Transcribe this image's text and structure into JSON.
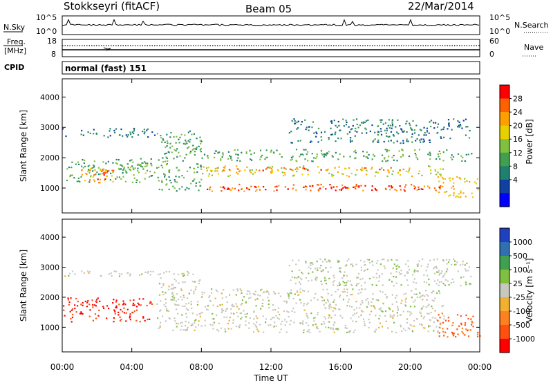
{
  "header": {
    "station": "Stokkseyri (fitACF)",
    "beam": "Beam 05",
    "date": "22/Mar/2014"
  },
  "nsky_panel": {
    "label": "N.Sky",
    "right_label": "N.Search",
    "left_ticks": [
      "10^5",
      "10^0"
    ],
    "right_ticks": [
      "10^5",
      "10^0"
    ]
  },
  "freq_panel": {
    "label_line1": "Freq.",
    "label_line2": "[MHz]",
    "right_label": "Nave",
    "left_ticks": [
      "18",
      "8"
    ],
    "right_ticks": [
      "60",
      "0"
    ]
  },
  "cpid_panel": {
    "label": "CPID",
    "text": "normal (fast) 151"
  },
  "power_panel": {
    "ylabel": "Slant Range [km]",
    "colorbar_label": "Power [dB]",
    "colorbar_ticks": [
      "28",
      "24",
      "20",
      "16",
      "12",
      "8",
      "4"
    ],
    "colorbar_colors": [
      "#ff0000",
      "#ff6000",
      "#ffa000",
      "#e6d000",
      "#80c040",
      "#40a050",
      "#208070",
      "#1040a0",
      "#0000ff"
    ]
  },
  "velocity_panel": {
    "ylabel": "Slant Range [km]",
    "colorbar_label": "Velocity [m s⁻¹]",
    "colorbar_ticks": [
      "1000",
      "500",
      "100",
      "25",
      "-25",
      "-100",
      "-500",
      "-1000"
    ],
    "colorbar_colors": [
      "#2040c0",
      "#3070b0",
      "#40a050",
      "#80c040",
      "#c8c8c0",
      "#f0b030",
      "#ff8020",
      "#ff5010",
      "#ff0000"
    ]
  },
  "x_axis": {
    "label": "Time UT"
  },
  "chart_data": {
    "type": "heatmap",
    "x_ticks": [
      "00:00",
      "04:00",
      "08:00",
      "12:00",
      "16:00",
      "20:00",
      "00:00"
    ],
    "xlim_hours": [
      0,
      24
    ],
    "y_ticks": [
      "1000",
      "2000",
      "3000",
      "4000"
    ],
    "ylim_km": [
      180,
      4600
    ],
    "power_scale_db": [
      0,
      30
    ],
    "velocity_scale_ms": [
      -1000,
      1000
    ],
    "power_bands": [
      {
        "t0": 0.0,
        "t1": 5.3,
        "r0": 2700,
        "r1": 3000,
        "p": 8
      },
      {
        "t0": 0.0,
        "t1": 5.3,
        "r0": 1200,
        "r1": 2000,
        "p": 12
      },
      {
        "t0": 1.0,
        "t1": 3.0,
        "r0": 1200,
        "r1": 1800,
        "p": 22
      },
      {
        "t0": 2.0,
        "t1": 2.7,
        "r0": 1300,
        "r1": 1600,
        "p": 27
      },
      {
        "t0": 3.3,
        "t1": 5.0,
        "r0": 1500,
        "r1": 1900,
        "p": 14
      },
      {
        "t0": 5.4,
        "t1": 8.0,
        "r0": 900,
        "r1": 2900,
        "p": 12
      },
      {
        "t0": 8.0,
        "t1": 22.5,
        "r0": 900,
        "r1": 1150,
        "p": 24
      },
      {
        "t0": 9.0,
        "t1": 20.5,
        "r0": 950,
        "r1": 1100,
        "p": 29
      },
      {
        "t0": 8.0,
        "t1": 22.0,
        "r0": 1400,
        "r1": 1750,
        "p": 18
      },
      {
        "t0": 8.5,
        "t1": 20.0,
        "r0": 1600,
        "r1": 1700,
        "p": 24
      },
      {
        "t0": 8.0,
        "t1": 23.5,
        "r0": 1900,
        "r1": 2300,
        "p": 12
      },
      {
        "t0": 13.0,
        "t1": 23.5,
        "r0": 2500,
        "r1": 3300,
        "p": 8
      },
      {
        "t0": 21.5,
        "t1": 24.0,
        "r0": 700,
        "r1": 1400,
        "p": 20
      }
    ],
    "velocity_bands": [
      {
        "t0": 0.0,
        "t1": 5.3,
        "r0": 2700,
        "r1": 2900,
        "v": 0
      },
      {
        "t0": 0.0,
        "t1": 5.3,
        "r0": 1200,
        "r1": 2000,
        "v": -800
      },
      {
        "t0": 5.4,
        "t1": 8.0,
        "r0": 900,
        "r1": 2900,
        "v": 0
      },
      {
        "t0": 8.0,
        "t1": 22.0,
        "r0": 850,
        "r1": 2300,
        "v": 0
      },
      {
        "t0": 13.0,
        "t1": 23.5,
        "r0": 2400,
        "r1": 3300,
        "v": 50
      },
      {
        "t0": 21.5,
        "t1": 24.0,
        "r0": 700,
        "r1": 1500,
        "v": -600
      }
    ]
  }
}
